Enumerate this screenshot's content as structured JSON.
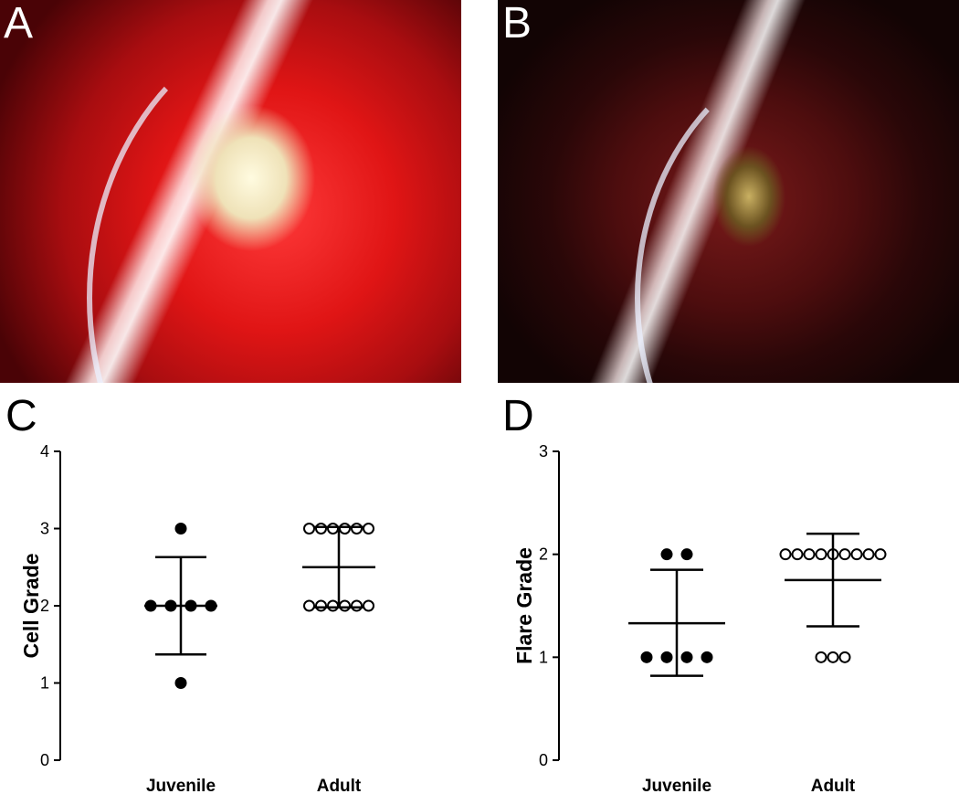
{
  "panels": {
    "a": {
      "letter": "A"
    },
    "b": {
      "letter": "B"
    },
    "c": {
      "letter": "C"
    },
    "d": {
      "letter": "D"
    }
  },
  "colors": {
    "filled_point": "#000000",
    "open_point_fill": "#ffffff",
    "open_point_stroke": "#000000"
  },
  "chart_data": [
    {
      "type": "scatter",
      "panel": "C",
      "title": "",
      "xlabel": "",
      "ylabel": "Cell Grade",
      "ylim": [
        0,
        4
      ],
      "yticks": [
        0,
        1,
        2,
        3,
        4
      ],
      "categories": [
        "Juvenile",
        "Adult"
      ],
      "series": [
        {
          "category": "Juvenile",
          "marker": "filled",
          "values": [
            1,
            2,
            2,
            2,
            2,
            3
          ],
          "mean": 2.0,
          "sd_upper": 2.63,
          "sd_lower": 1.37
        },
        {
          "category": "Adult",
          "marker": "open",
          "values": [
            2,
            2,
            2,
            2,
            2,
            2,
            3,
            3,
            3,
            3,
            3,
            3
          ],
          "mean": 2.5,
          "sd_upper": 3.02,
          "sd_lower": 1.98
        }
      ]
    },
    {
      "type": "scatter",
      "panel": "D",
      "title": "",
      "xlabel": "",
      "ylabel": "Flare Grade",
      "ylim": [
        0,
        3
      ],
      "yticks": [
        0,
        1,
        2,
        3
      ],
      "categories": [
        "Juvenile",
        "Adult"
      ],
      "series": [
        {
          "category": "Juvenile",
          "marker": "filled",
          "values": [
            1,
            1,
            1,
            1,
            2,
            2
          ],
          "mean": 1.33,
          "sd_upper": 1.85,
          "sd_lower": 0.82
        },
        {
          "category": "Adult",
          "marker": "open",
          "values": [
            1,
            1,
            1,
            2,
            2,
            2,
            2,
            2,
            2,
            2,
            2,
            2
          ],
          "mean": 1.75,
          "sd_upper": 2.2,
          "sd_lower": 1.3
        }
      ]
    }
  ]
}
